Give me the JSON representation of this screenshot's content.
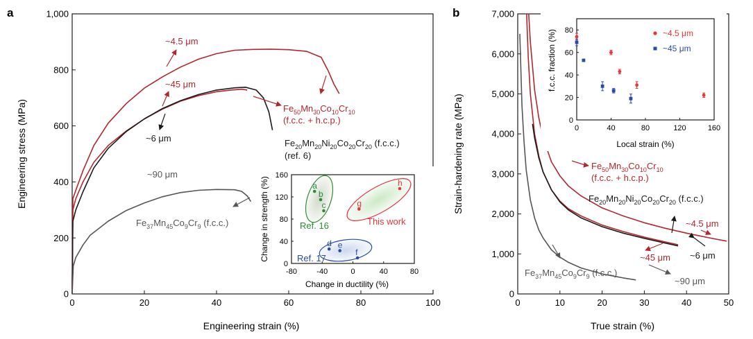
{
  "colors": {
    "red": "#b3262e",
    "black": "#1a1a1a",
    "gray": "#555555",
    "green": "#2e8b3a",
    "blue": "#2a4aa8",
    "lightred": "#e8353a"
  },
  "panel_a": {
    "label": "a",
    "xlabel": "Engineering strain (%)",
    "ylabel": "Engineering stress (MPa)",
    "y_top_tick": "1,000",
    "ann": {
      "s45um_small": "~4.5 μm",
      "s45um_large": "~45 μm",
      "s6um": "~6 μm",
      "s90um": "~90 μm",
      "fe50_main": "Fe",
      "fe50_sub1": "50",
      "fe50_m2": "Mn",
      "fe50_sub2": "30",
      "fe50_m3": "Co",
      "fe50_sub3": "10",
      "fe50_m4": "Cr",
      "fe50_sub4": "10",
      "fe50_phase": "(f.c.c. + h.c.p.)",
      "fe20_main": "Fe",
      "fe20_sub1": "20",
      "fe20_m2": "Mn",
      "fe20_sub2": "20",
      "fe20_m3": "Ni",
      "fe20_sub3": "20",
      "fe20_m4": "Co",
      "fe20_sub4": "20",
      "fe20_m5": "Cr",
      "fe20_sub5": "20",
      "fe20_phase": " (f.c.c.)",
      "fe20_ref": "(ref. 6)",
      "fe37_main": "Fe",
      "fe37_sub1": "37",
      "fe37_m2": "Mn",
      "fe37_sub2": "45",
      "fe37_m3": "Co",
      "fe37_sub3": "9",
      "fe37_m4": "Cr",
      "fe37_sub4": "9",
      "fe37_phase": " (f.c.c.)"
    },
    "inset": {
      "xlabel": "Change in ductility (%)",
      "ylabel": "Change in strength (%)",
      "ref16": "Ref. 16",
      "ref17": "Ref. 17",
      "this_work": "This work"
    }
  },
  "panel_b": {
    "label": "b",
    "xlabel": "True strain (%)",
    "ylabel": "Strain-hardening rate (MPa)",
    "y_top_tick": "7,000",
    "ann": {
      "fe50_phase": "(f.c.c. + h.c.p.)",
      "fe20_phase": " (f.c.c.)",
      "fe37_phase": " (f.c.c.)",
      "s45um_small": "~4.5 μm",
      "s45um_large": "~45 μm",
      "s6um": "~6 μm",
      "s90um": "~90 μm"
    },
    "inset": {
      "xlabel": "Local strain (%)",
      "ylabel": "f.c.c. fraction (%)",
      "legend_red": "~4.5 μm",
      "legend_blue": "~45 μm"
    }
  },
  "chart_data": [
    {
      "type": "line",
      "panel": "a",
      "xlabel": "Engineering strain (%)",
      "ylabel": "Engineering stress (MPa)",
      "xlim": [
        0,
        100
      ],
      "ylim": [
        0,
        1000
      ],
      "x_ticks": [
        0,
        20,
        40,
        60,
        80,
        100
      ],
      "y_ticks": [
        0,
        200,
        400,
        600,
        800,
        1000
      ],
      "y_tick_labels": [
        "0",
        "200",
        "400",
        "600",
        "800",
        "1,000"
      ],
      "series": [
        {
          "name": "~4.5 μm",
          "color": "red",
          "x": [
            0,
            0.2,
            1,
            3,
            6,
            10,
            15,
            20,
            25,
            30,
            35,
            40,
            45,
            50,
            55,
            60,
            65,
            69,
            71,
            72.5,
            74
          ],
          "y": [
            0,
            340,
            370,
            440,
            530,
            610,
            680,
            735,
            775,
            810,
            838,
            858,
            870,
            873,
            874,
            872,
            866,
            845,
            795,
            750,
            715
          ]
        },
        {
          "name": "~45 μm",
          "color": "red",
          "x": [
            0,
            0.2,
            1,
            3,
            6,
            10,
            15,
            20,
            25,
            30,
            35,
            40,
            44,
            47,
            48.5
          ],
          "y": [
            0,
            300,
            340,
            400,
            470,
            530,
            582,
            625,
            660,
            688,
            708,
            722,
            728,
            731,
            728
          ]
        },
        {
          "name": "~6 μm",
          "color": "black",
          "x": [
            0,
            0.2,
            1,
            3,
            6,
            10,
            15,
            20,
            25,
            30,
            35,
            40,
            45,
            48,
            51,
            53,
            54.5,
            55.5
          ],
          "y": [
            0,
            260,
            300,
            365,
            450,
            520,
            580,
            625,
            662,
            690,
            712,
            728,
            736,
            738,
            728,
            700,
            650,
            585
          ]
        },
        {
          "name": "~90 μm",
          "color": "gray",
          "x": [
            0,
            0.3,
            1,
            3,
            5,
            10,
            15,
            20,
            25,
            30,
            35,
            40,
            45,
            47,
            48.5,
            49.5
          ],
          "y": [
            0,
            100,
            130,
            175,
            210,
            260,
            298,
            325,
            347,
            362,
            370,
            373,
            372,
            366,
            350,
            330
          ]
        }
      ]
    },
    {
      "type": "scatter",
      "panel": "a-inset",
      "xlabel": "Change in ductility (%)",
      "ylabel": "Change in strength (%)",
      "xlim": [
        -80,
        80
      ],
      "ylim": [
        0,
        160
      ],
      "x_ticks": [
        -80,
        -40,
        0,
        40,
        80
      ],
      "y_ticks": [
        0,
        40,
        80,
        120,
        160
      ],
      "series": [
        {
          "name": "Ref. 16",
          "color": "green",
          "labels": [
            "a",
            "b",
            "c"
          ],
          "x": [
            -50,
            -42,
            -38
          ],
          "y": [
            130,
            115,
            95
          ]
        },
        {
          "name": "This work",
          "color": "lightred",
          "labels": [
            "g",
            "h"
          ],
          "x": [
            8,
            61
          ],
          "y": [
            98,
            135
          ]
        },
        {
          "name": "Ref. 17",
          "color": "blue",
          "labels": [
            "d",
            "e",
            "f"
          ],
          "x": [
            -31,
            -17,
            6
          ],
          "y": [
            26,
            23,
            10
          ]
        }
      ]
    },
    {
      "type": "line",
      "panel": "b",
      "xlabel": "True strain (%)",
      "ylabel": "Strain-hardening rate (MPa)",
      "xlim": [
        0,
        50
      ],
      "ylim": [
        0,
        7000
      ],
      "x_ticks": [
        0,
        10,
        20,
        30,
        40,
        50
      ],
      "y_ticks": [
        0,
        1000,
        2000,
        3000,
        4000,
        5000,
        6000,
        7000
      ],
      "y_tick_labels": [
        "0",
        "1,000",
        "2,000",
        "3,000",
        "4,000",
        "5,000",
        "6,000",
        "7,000"
      ],
      "series": [
        {
          "name": "~4.5 μm",
          "color": "red",
          "x": [
            2.6,
            3,
            4,
            5,
            6,
            8,
            10,
            12,
            15,
            20,
            25,
            30,
            35,
            40,
            45,
            49.5
          ],
          "y": [
            7000,
            6300,
            5100,
            4400,
            3900,
            3300,
            2950,
            2700,
            2450,
            2150,
            1950,
            1780,
            1640,
            1520,
            1410,
            1320
          ]
        },
        {
          "name": "~45 μm",
          "color": "red",
          "x": [
            2.1,
            2.5,
            3,
            4,
            5,
            6,
            8,
            10,
            12,
            15,
            20,
            25,
            30,
            35,
            38
          ],
          "y": [
            7000,
            5900,
            5000,
            4000,
            3450,
            3050,
            2600,
            2320,
            2130,
            1950,
            1720,
            1560,
            1420,
            1300,
            1230
          ]
        },
        {
          "name": "~6 μm",
          "color": "black",
          "x": [
            3.5,
            4,
            5,
            6,
            8,
            10,
            12,
            15,
            20,
            25,
            30,
            35,
            38
          ],
          "y": [
            4250,
            3900,
            3400,
            3050,
            2600,
            2300,
            2100,
            1900,
            1680,
            1520,
            1390,
            1270,
            1200
          ]
        },
        {
          "name": "~90 μm",
          "color": "gray",
          "x": [
            0.5,
            1,
            1.5,
            2,
            3,
            4,
            5,
            6,
            8,
            10,
            12,
            15,
            20,
            25,
            28
          ],
          "y": [
            6500,
            4700,
            3800,
            3100,
            2350,
            1900,
            1600,
            1400,
            1100,
            920,
            790,
            650,
            500,
            400,
            350
          ]
        }
      ]
    },
    {
      "type": "scatter",
      "panel": "b-inset",
      "xlabel": "Local strain (%)",
      "ylabel": "f.c.c. fraction (%)",
      "xlim": [
        0,
        160
      ],
      "ylim": [
        0,
        90
      ],
      "x_ticks": [
        0,
        40,
        80,
        120,
        160
      ],
      "y_ticks": [
        0,
        20,
        40,
        60,
        80
      ],
      "series": [
        {
          "name": "~4.5 μm",
          "color": "lightred",
          "x": [
            0,
            40,
            50,
            70,
            148
          ],
          "y": [
            74,
            60,
            43,
            31,
            22
          ],
          "err": [
            3,
            2,
            2,
            3,
            2
          ]
        },
        {
          "name": "~45 μm",
          "color": "blue",
          "x": [
            0,
            8,
            30,
            43,
            63
          ],
          "y": [
            69,
            53,
            30,
            26,
            19
          ],
          "err": [
            3,
            1,
            4,
            2,
            4
          ]
        }
      ]
    }
  ]
}
